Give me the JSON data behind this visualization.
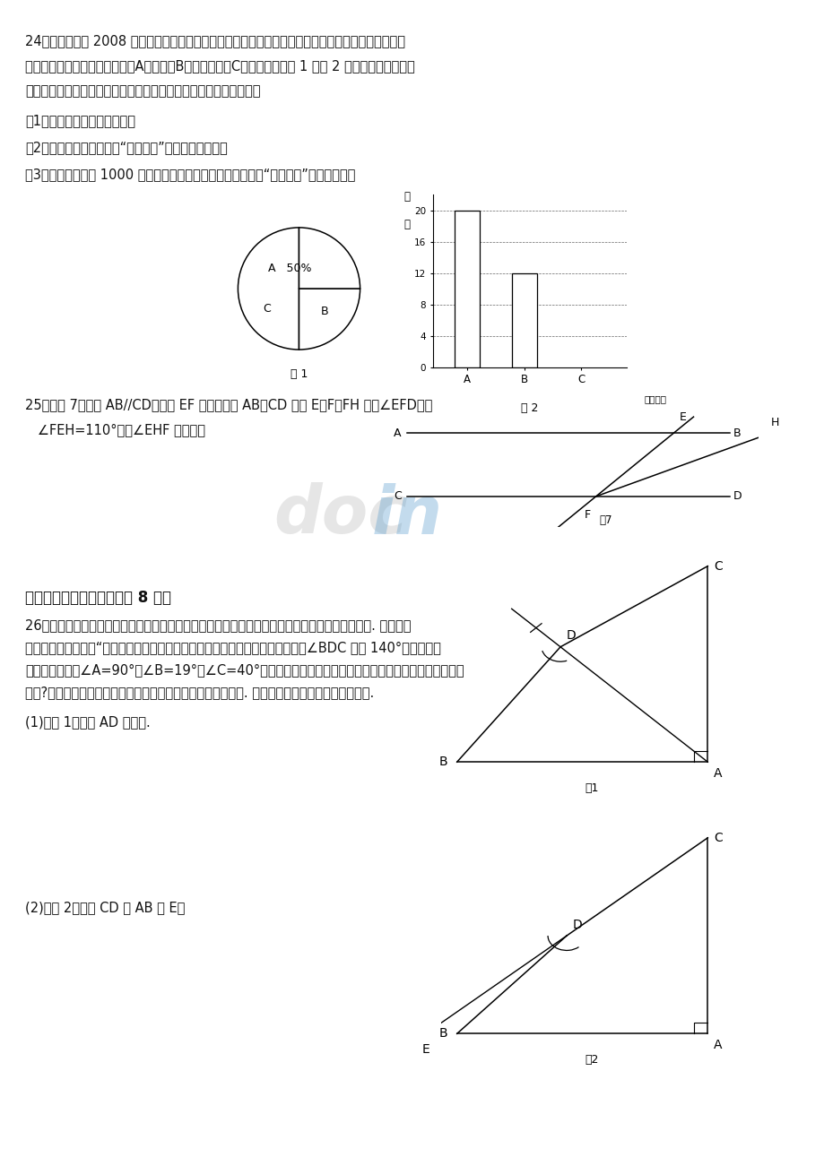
{
  "bg_color": "#ffffff",
  "page_width": 9.2,
  "page_height": 13.01,
  "main_font_size": 10.5,
  "q24_line1": "24、自北京举办 2008 年夏季奥运会以来，奥运知识在我国不断传播，小刚就本班学生的对奥运知识的",
  "q24_line2": "了解程度进行了一次调查统计。A：熟悉，B：了解较多，C：一般了解。图 1 和图 2 是他采集数据后，绘",
  "q24_line3": "制的两幅不完整的统计图，请你根据图中提供的信息解答以下问题：",
  "q24_sub1": "（1）求该班共有多少名学生。",
  "q24_sub2": "（2）在条形图中，将表示“一般了解”的部分补充完整。",
  "q24_sub3": "（3）如果全年级共 1000 名同学，请你估算全年级对奥运知识“了解较多”的学生人数。",
  "q25_line1": "25、如图 7，直线 AB//CD，直线 EF 分别交直线 AB、CD 于点 E、F，FH 平分∠EFD，若",
  "q25_line2": "   ∠FEH=110°，求∠EHF 的度数。",
  "q26_section": "五、其实很简单哦！（本题 8 分）",
  "q26_line1": "26、星期天，小明见爸爸愜眉苦脸在看一张图纸，他便悄悄地来到爸爸身边，想看爸爸为什么犯愁. 爸爸见到",
  "q26_line2": "他，高兴地对他说：“来帮我一个忙，你看这是一个四边形零件的平面图，它要求∠BDC 等于 140°才算合格，",
  "q26_line3": "小明通过测量得∠A=90°，∠B=19°，∠C=40°后就下结论说此零件不合格，于是爸爸让小明解释这是为什",
  "q26_line4": "么呢?小明很轻松地说出了原因，并用如下的三种方法解出此题. 请你代小明分别说出不合格的理由.",
  "q26_sub1": "(1)如图 1，连结 AD 并延长.",
  "q26_sub2": "(2)如图 2，延长 CD 交 AB 于 E。"
}
